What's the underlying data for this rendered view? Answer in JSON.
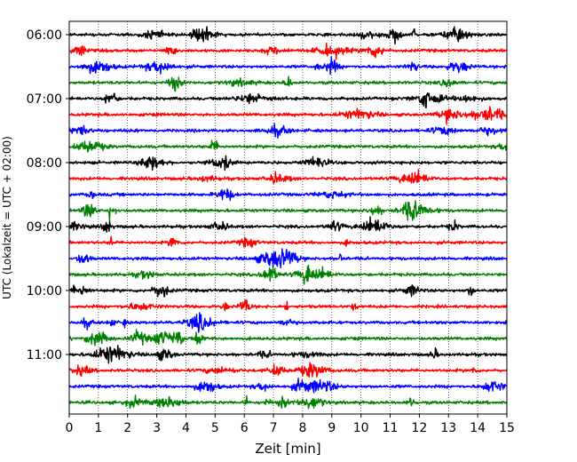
{
  "chart_data": {
    "type": "line",
    "title": "",
    "xlabel": "Zeit  [min]",
    "ylabel": "UTC (Lokalzeit = UTC + 02:00)",
    "xlim": [
      0,
      15
    ],
    "xticks": [
      "0",
      "1",
      "2",
      "3",
      "4",
      "5",
      "6",
      "7",
      "8",
      "9",
      "10",
      "11",
      "12",
      "13",
      "14",
      "15"
    ],
    "yticks": [
      "06:00",
      "07:00",
      "08:00",
      "09:00",
      "10:00",
      "11:00"
    ],
    "grid": "vertical dotted lines at each minute",
    "trace_interval_minutes": 15,
    "traces": [
      {
        "start": "06:00",
        "color": "#000000"
      },
      {
        "start": "06:15",
        "color": "#ff0000"
      },
      {
        "start": "06:30",
        "color": "#0000ff"
      },
      {
        "start": "06:45",
        "color": "#008000"
      },
      {
        "start": "07:00",
        "color": "#000000"
      },
      {
        "start": "07:15",
        "color": "#ff0000"
      },
      {
        "start": "07:30",
        "color": "#0000ff"
      },
      {
        "start": "07:45",
        "color": "#008000"
      },
      {
        "start": "08:00",
        "color": "#000000"
      },
      {
        "start": "08:15",
        "color": "#ff0000"
      },
      {
        "start": "08:30",
        "color": "#0000ff"
      },
      {
        "start": "08:45",
        "color": "#008000"
      },
      {
        "start": "09:00",
        "color": "#000000"
      },
      {
        "start": "09:15",
        "color": "#ff0000"
      },
      {
        "start": "09:30",
        "color": "#0000ff"
      },
      {
        "start": "09:45",
        "color": "#008000"
      },
      {
        "start": "10:00",
        "color": "#000000"
      },
      {
        "start": "10:15",
        "color": "#ff0000"
      },
      {
        "start": "10:30",
        "color": "#0000ff"
      },
      {
        "start": "10:45",
        "color": "#008000"
      },
      {
        "start": "11:00",
        "color": "#000000"
      },
      {
        "start": "11:15",
        "color": "#ff0000"
      },
      {
        "start": "11:30",
        "color": "#0000ff"
      },
      {
        "start": "11:45",
        "color": "#008000"
      }
    ]
  }
}
